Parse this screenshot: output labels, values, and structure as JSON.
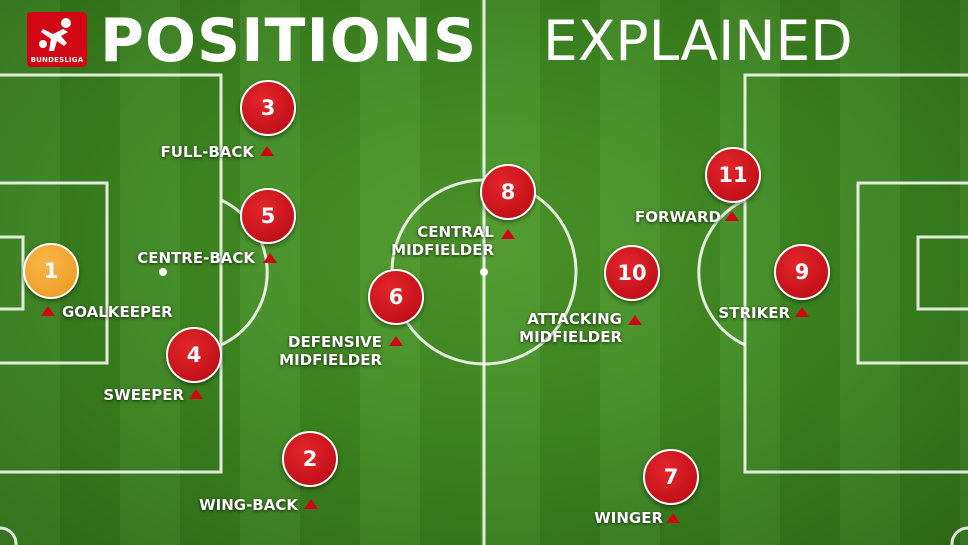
{
  "header": {
    "brand": "BUNDESLIGA",
    "title_bold": "POSITIONS",
    "title_light": "EXPLAINED"
  },
  "colors": {
    "brand_red": "#d20515",
    "goalkeeper_orange": "#efa22a",
    "pitch_green": "#3f8a22",
    "line_white": "#ffffff"
  },
  "positions": [
    {
      "number": "1",
      "label": "GOALKEEPER"
    },
    {
      "number": "2",
      "label": "WING-BACK"
    },
    {
      "number": "3",
      "label": "FULL-BACK"
    },
    {
      "number": "4",
      "label": "SWEEPER"
    },
    {
      "number": "5",
      "label": "CENTRE-BACK"
    },
    {
      "number": "6",
      "label_line1": "DEFENSIVE",
      "label_line2": "MIDFIELDER"
    },
    {
      "number": "7",
      "label": "WINGER"
    },
    {
      "number": "8",
      "label_line1": "CENTRAL",
      "label_line2": "MIDFIELDER"
    },
    {
      "number": "9",
      "label": "STRIKER"
    },
    {
      "number": "10",
      "label_line1": "ATTACKING",
      "label_line2": "MIDFIELDER"
    },
    {
      "number": "11",
      "label": "FORWARD"
    }
  ]
}
